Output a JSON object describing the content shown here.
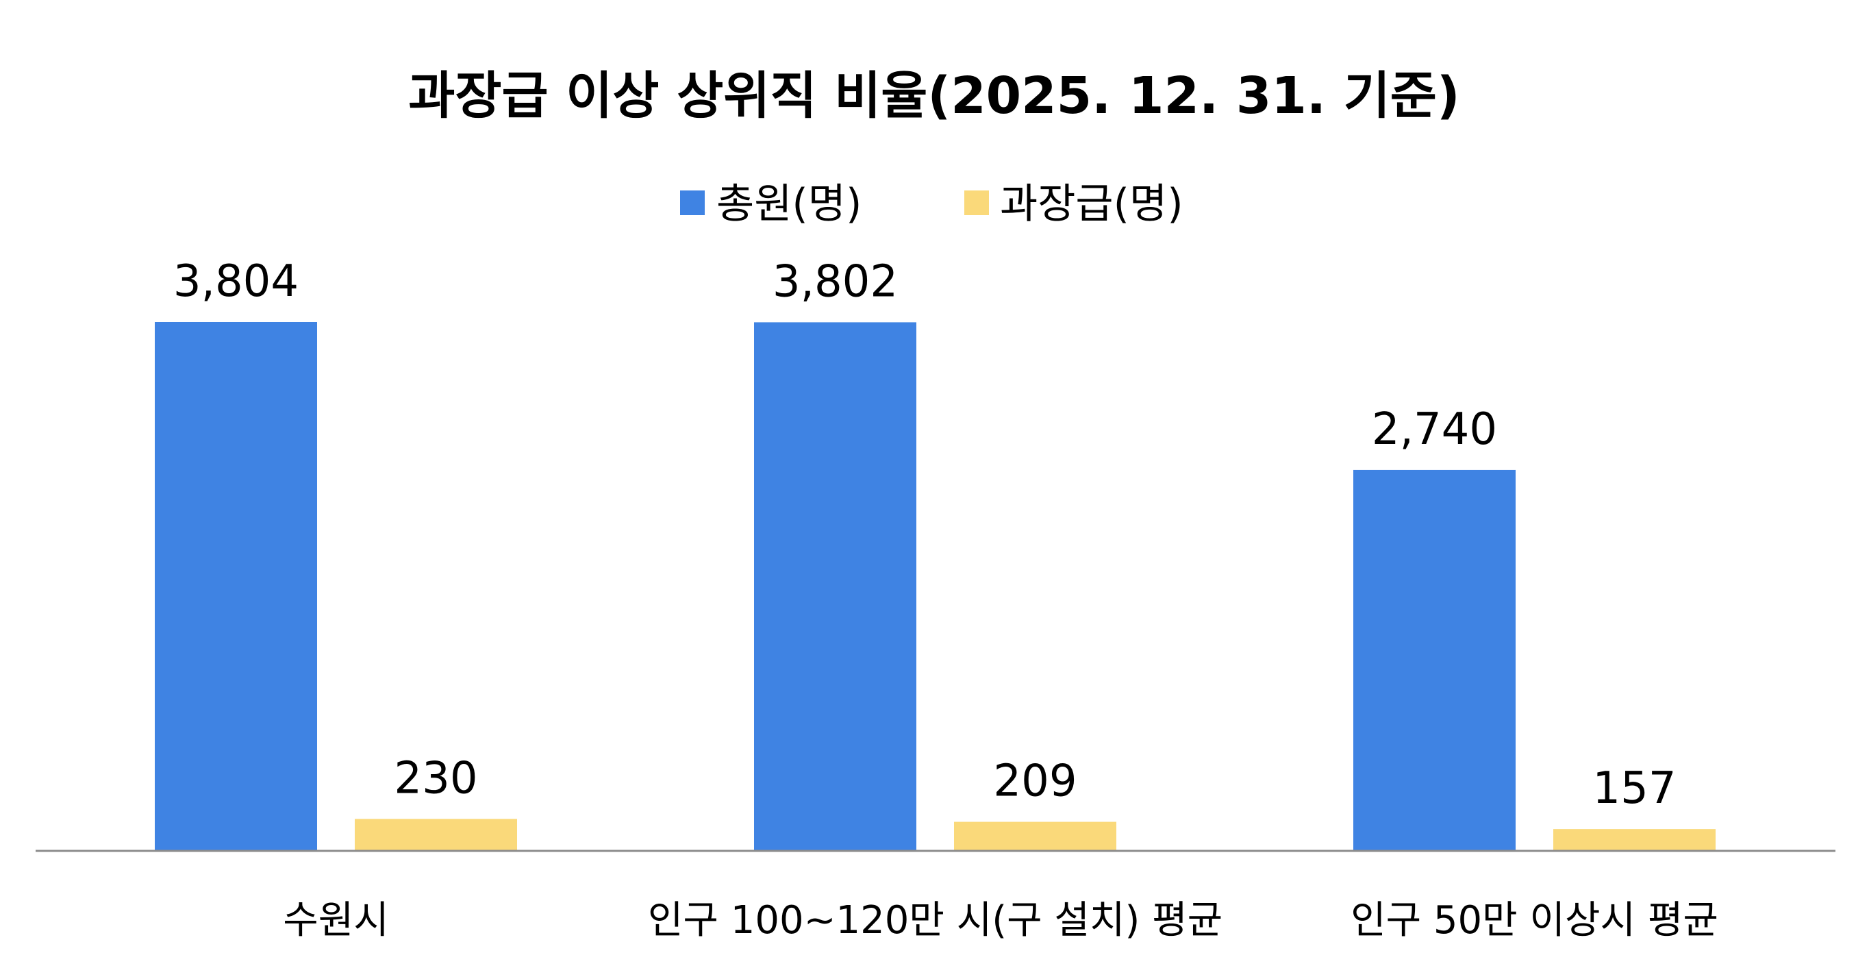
{
  "chart_data": {
    "type": "bar",
    "title": "과장급 이상 상위직 비율(2025. 12. 31. 기준)",
    "categories": [
      "수원시",
      "인구 100~120만 시(구 설치) 평균",
      "인구 50만 이상시 평균"
    ],
    "series": [
      {
        "name": "총원(명)",
        "values": [
          3804,
          3802,
          2740
        ],
        "labels": [
          "3,804",
          "3,802",
          "2,740"
        ],
        "color": "#3f83e3"
      },
      {
        "name": "과장급(명)",
        "values": [
          230,
          209,
          157
        ],
        "labels": [
          "230",
          "209",
          "157"
        ],
        "color": "#fad97a"
      }
    ],
    "ylim": [
      0,
      4000
    ],
    "grid": false,
    "legend_position": "top-center",
    "xlabel": "",
    "ylabel": ""
  }
}
